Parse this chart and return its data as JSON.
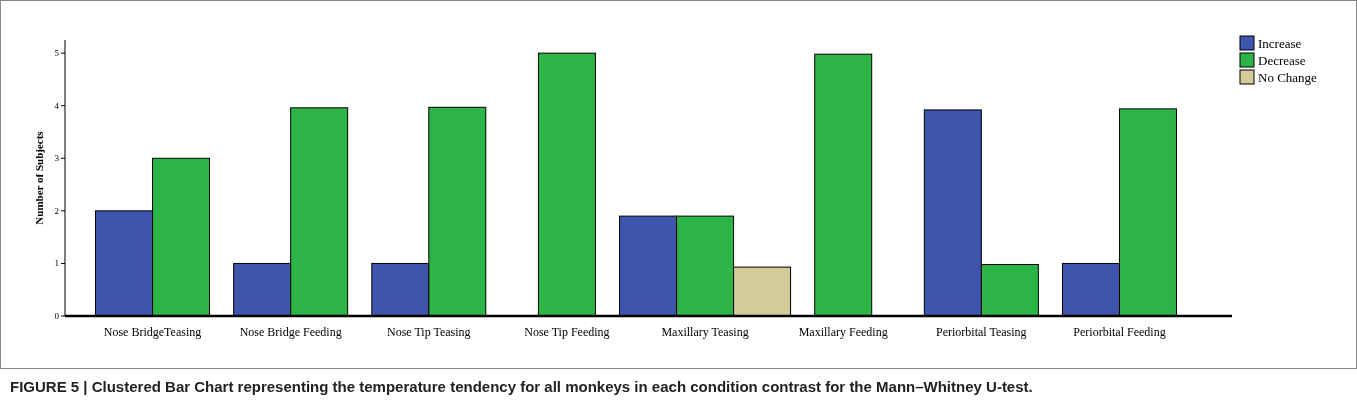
{
  "chart_data": {
    "type": "bar",
    "title": "FIGURE 5 | Clustered Bar Chart representing the temperature tendency for all monkeys in each condition contrast for the Mann–Whitney U-test.",
    "ylabel": "Number of Subjects",
    "categories": [
      "Nose BridgeTeasing",
      "Nose Bridge Feeding",
      "Nose Tip Teasing",
      "Nose Tip Feeding",
      "Maxillary Teasing",
      "Maxillary Feeding",
      "Periorbital Teasing",
      "Periorbital Feeding"
    ],
    "series": [
      {
        "name": "Increase",
        "color": "#3d55ac",
        "values": [
          2,
          1,
          1,
          null,
          1.9,
          null,
          3.92,
          1
        ]
      },
      {
        "name": "Decrease",
        "color": "#2db446",
        "values": [
          3,
          3.96,
          3.97,
          5,
          1.9,
          4.98,
          0.98,
          3.94
        ]
      },
      {
        "name": "No Change",
        "color": "#d3cb98",
        "values": [
          null,
          null,
          null,
          null,
          0.93,
          null,
          null,
          null
        ]
      }
    ],
    "ylim": [
      0,
      5.25
    ],
    "yticks": [
      0,
      1,
      2,
      3,
      4,
      5
    ],
    "legend": "top right"
  }
}
